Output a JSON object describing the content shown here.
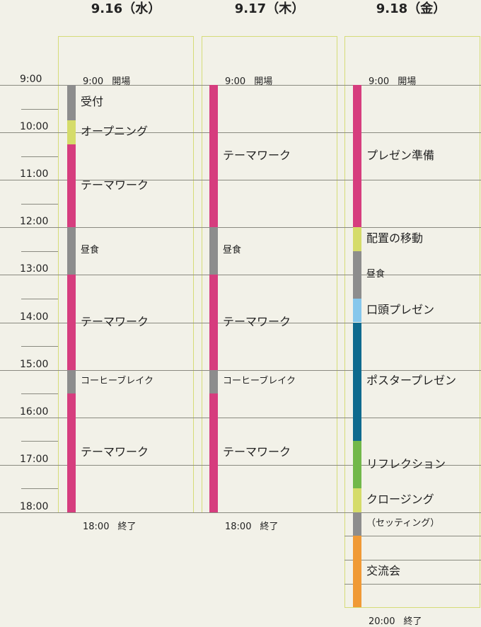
{
  "days": [
    {
      "title": "9.16（水）",
      "open_note": {
        "time": "9:00",
        "text": "開場"
      },
      "close_note": {
        "time": "18:00",
        "text": "終了"
      },
      "segments": [
        {
          "label": "受付",
          "start": "9:00",
          "end": "9:45",
          "color": "#8d8d8d"
        },
        {
          "label": "オープニング",
          "start": "9:45",
          "end": "10:15",
          "color": "#d5dc6a"
        },
        {
          "label": "テーマワーク",
          "start": "10:15",
          "end": "12:00",
          "color": "#d63d7e"
        },
        {
          "label": "昼食",
          "start": "12:00",
          "end": "13:00",
          "color": "#8d8d8d"
        },
        {
          "label": "テーマワーク",
          "start": "13:00",
          "end": "15:00",
          "color": "#d63d7e"
        },
        {
          "label": "コーヒーブレイク",
          "start": "15:00",
          "end": "15:30",
          "color": "#8d8d8d"
        },
        {
          "label": "テーマワーク",
          "start": "15:30",
          "end": "18:00",
          "color": "#d63d7e"
        }
      ]
    },
    {
      "title": "9.17（木）",
      "open_note": {
        "time": "9:00",
        "text": "開場"
      },
      "close_note": {
        "time": "18:00",
        "text": "終了"
      },
      "segments": [
        {
          "label": "テーマワーク",
          "start": "9:00",
          "end": "12:00",
          "color": "#d63d7e"
        },
        {
          "label": "昼食",
          "start": "12:00",
          "end": "13:00",
          "color": "#8d8d8d"
        },
        {
          "label": "テーマワーク",
          "start": "13:00",
          "end": "15:00",
          "color": "#d63d7e"
        },
        {
          "label": "コーヒーブレイク",
          "start": "15:00",
          "end": "15:30",
          "color": "#8d8d8d"
        },
        {
          "label": "テーマワーク",
          "start": "15:30",
          "end": "18:00",
          "color": "#d63d7e"
        }
      ]
    },
    {
      "title": "9.18（金）",
      "open_note": {
        "time": "9:00",
        "text": "開場"
      },
      "close_note": {
        "time": "20:00",
        "text": "終了"
      },
      "segments": [
        {
          "label": "プレゼン準備",
          "start": "9:00",
          "end": "12:00",
          "color": "#d63d7e"
        },
        {
          "label": "配置の移動",
          "start": "12:00",
          "end": "12:30",
          "color": "#d5dc6a"
        },
        {
          "label": "昼食",
          "start": "12:30",
          "end": "13:30",
          "color": "#8d8d8d"
        },
        {
          "label": "口頭プレゼン",
          "start": "13:30",
          "end": "14:00",
          "color": "#86c7ec"
        },
        {
          "label": "ポスタープレゼン",
          "start": "14:00",
          "end": "16:30",
          "color": "#0f6a8e"
        },
        {
          "label": "リフレクション",
          "start": "16:30",
          "end": "17:30",
          "color": "#72b84a"
        },
        {
          "label": "クロージング",
          "start": "17:30",
          "end": "18:00",
          "color": "#d5dc6a"
        },
        {
          "label": "（セッティング）",
          "start": "18:00",
          "end": "18:30",
          "color": "#8d8d8d"
        },
        {
          "label": "交流会",
          "start": "18:30",
          "end": "20:00",
          "color": "#f09a36"
        }
      ]
    }
  ],
  "hours": [
    "9:00",
    "10:00",
    "11:00",
    "12:00",
    "13:00",
    "14:00",
    "15:00",
    "16:00",
    "17:00",
    "18:00"
  ]
}
